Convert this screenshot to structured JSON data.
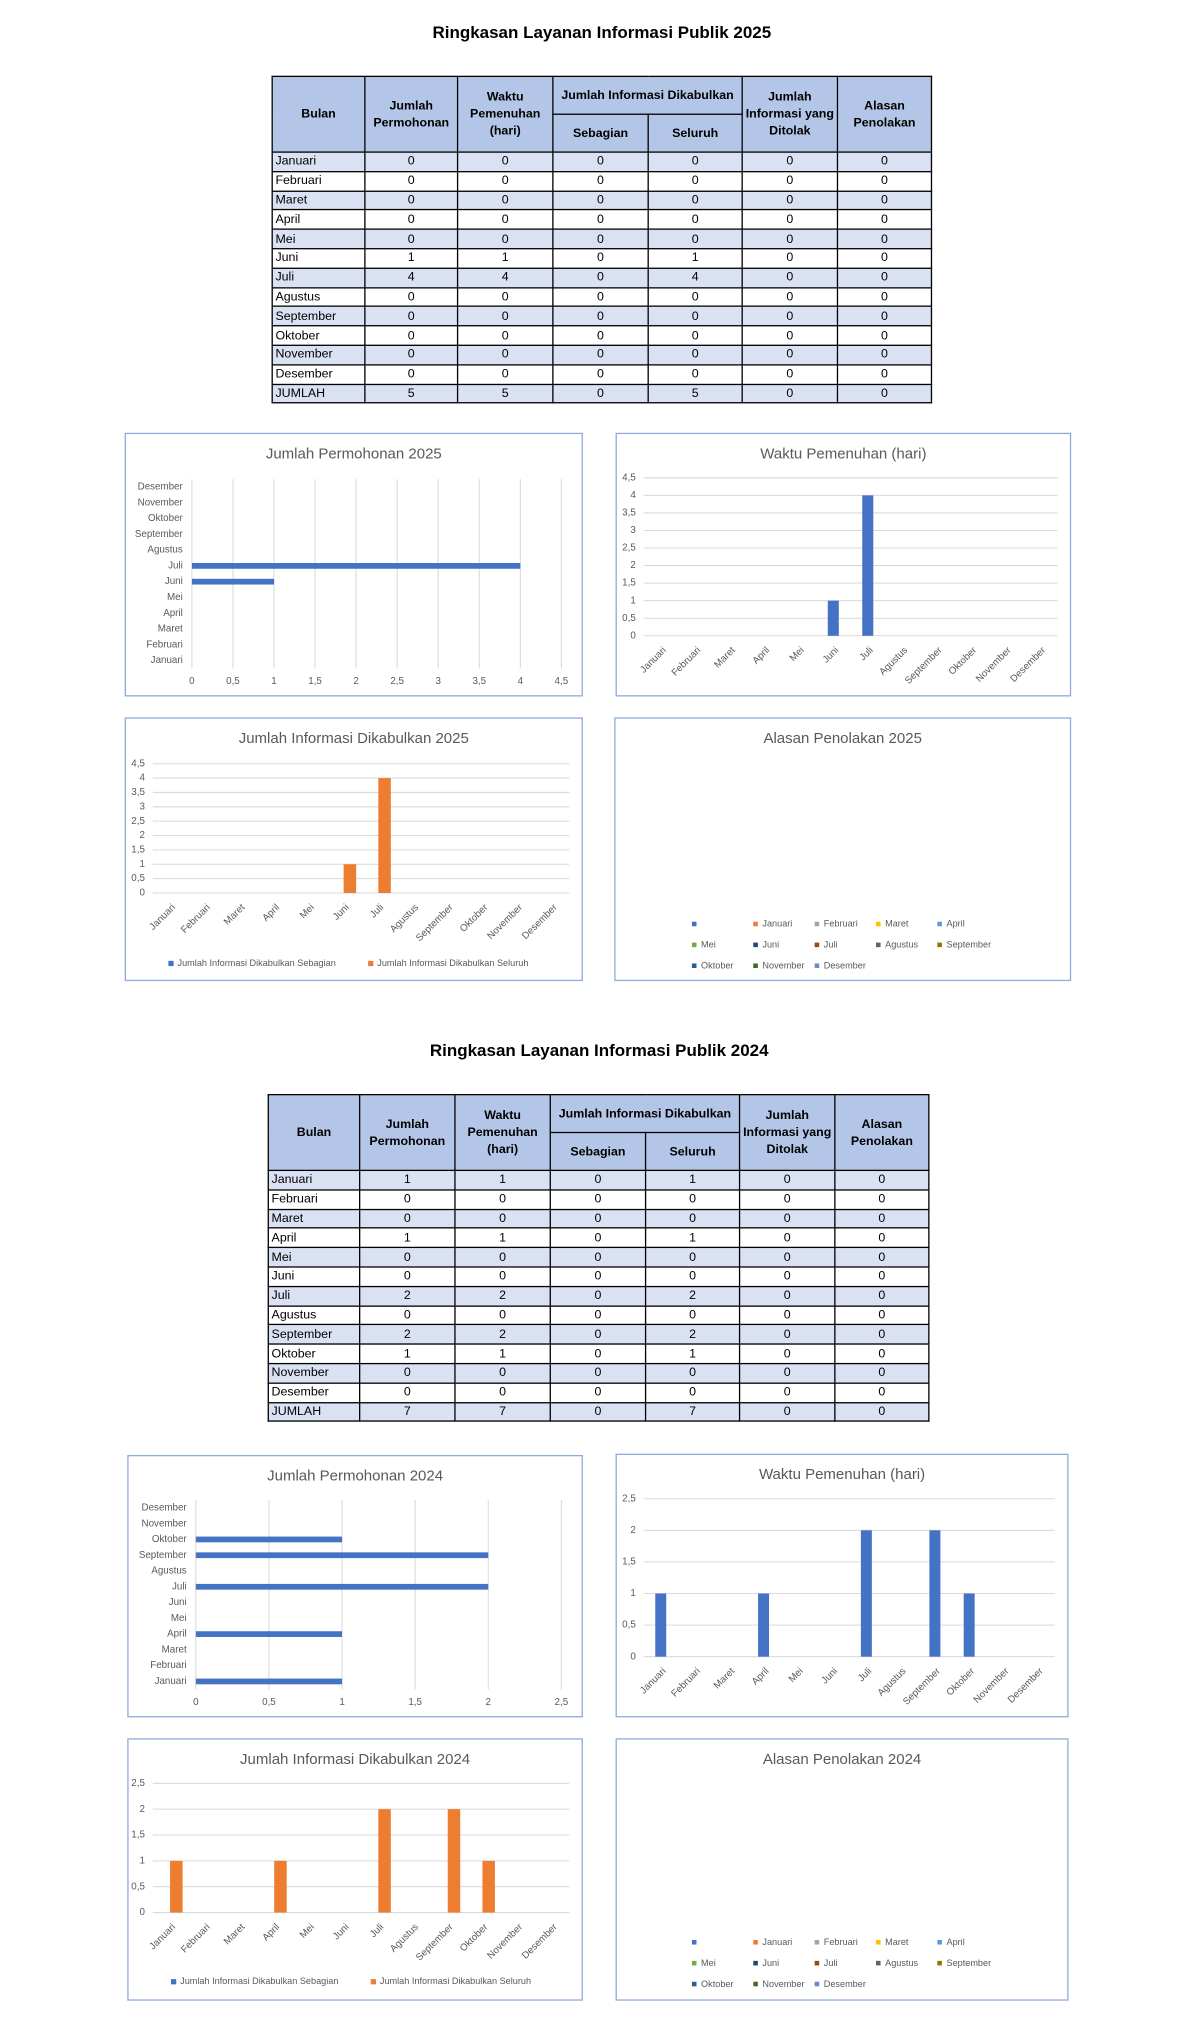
{
  "sections": [
    {
      "title": "Ringkasan Layanan Informasi Publik 2025",
      "table": {
        "columns": [
          "Bulan",
          "Jumlah Permohonan",
          "Waktu Pemenuhan (hari)",
          "Sebagian",
          "Seluruh",
          "Jumlah Informasi yang Ditolak",
          "Alasan Penolakan"
        ],
        "group": "Jumlah Informasi Dikabulkan",
        "rows": [
          [
            "Januari",
            0,
            0,
            0,
            0,
            0,
            0
          ],
          [
            "Februari",
            0,
            0,
            0,
            0,
            0,
            0
          ],
          [
            "Maret",
            0,
            0,
            0,
            0,
            0,
            0
          ],
          [
            "April",
            0,
            0,
            0,
            0,
            0,
            0
          ],
          [
            "Mei",
            0,
            0,
            0,
            0,
            0,
            0
          ],
          [
            "Juni",
            1,
            1,
            0,
            1,
            0,
            0
          ],
          [
            "Juli",
            4,
            4,
            0,
            4,
            0,
            0
          ],
          [
            "Agustus",
            0,
            0,
            0,
            0,
            0,
            0
          ],
          [
            "September",
            0,
            0,
            0,
            0,
            0,
            0
          ],
          [
            "Oktober",
            0,
            0,
            0,
            0,
            0,
            0
          ],
          [
            "November",
            0,
            0,
            0,
            0,
            0,
            0
          ],
          [
            "Desember",
            0,
            0,
            0,
            0,
            0,
            0
          ],
          [
            "JUMLAH",
            5,
            5,
            0,
            5,
            0,
            0
          ]
        ]
      }
    },
    {
      "title": "Ringkasan Layanan Informasi Publik 2024",
      "table": {
        "columns": [
          "Bulan",
          "Jumlah Permohonan",
          "Waktu Pemenuhan (hari)",
          "Sebagian",
          "Seluruh",
          "Jumlah Informasi yang Ditolak",
          "Alasan Penolakan"
        ],
        "group": "Jumlah Informasi Dikabulkan",
        "rows": [
          [
            "Januari",
            1,
            1,
            0,
            1,
            0,
            0
          ],
          [
            "Februari",
            0,
            0,
            0,
            0,
            0,
            0
          ],
          [
            "Maret",
            0,
            0,
            0,
            0,
            0,
            0
          ],
          [
            "April",
            1,
            1,
            0,
            1,
            0,
            0
          ],
          [
            "Mei",
            0,
            0,
            0,
            0,
            0,
            0
          ],
          [
            "Juni",
            0,
            0,
            0,
            0,
            0,
            0
          ],
          [
            "Juli",
            2,
            2,
            0,
            2,
            0,
            0
          ],
          [
            "Agustus",
            0,
            0,
            0,
            0,
            0,
            0
          ],
          [
            "September",
            2,
            2,
            0,
            2,
            0,
            0
          ],
          [
            "Oktober",
            1,
            1,
            0,
            1,
            0,
            0
          ],
          [
            "November",
            0,
            0,
            0,
            0,
            0,
            0
          ],
          [
            "Desember",
            0,
            0,
            0,
            0,
            0,
            0
          ],
          [
            "JUMLAH",
            7,
            7,
            0,
            7,
            0,
            0
          ]
        ]
      }
    }
  ],
  "chart_data": [
    {
      "type": "bar",
      "orientation": "horizontal",
      "title": "Jumlah Permohonan 2025",
      "categories": [
        "Januari",
        "Februari",
        "Maret",
        "April",
        "Mei",
        "Juni",
        "Juli",
        "Agustus",
        "September",
        "Oktober",
        "November",
        "Desember"
      ],
      "values": [
        0,
        0,
        0,
        0,
        0,
        1,
        4,
        0,
        0,
        0,
        0,
        0
      ],
      "color": "#4472c4",
      "xlim": [
        0,
        4.5
      ],
      "xticks": [
        0,
        {
          "value": 0.5,
          "label": "0,5"
        },
        1,
        {
          "value": 1.5,
          "label": "1,5"
        },
        2,
        {
          "value": 2.5,
          "label": "2,5"
        },
        3,
        {
          "value": 3.5,
          "label": "3,5"
        },
        4,
        {
          "value": 4.5,
          "label": "4,5"
        }
      ],
      "grid": true
    },
    {
      "type": "bar",
      "title": "Waktu Pemenuhan (hari)",
      "categories": [
        "Januari",
        "Februari",
        "Maret",
        "April",
        "Mei",
        "Juni",
        "Juli",
        "Agustus",
        "September",
        "Oktober",
        "November",
        "Desember"
      ],
      "values": [
        0,
        0,
        0,
        0,
        0,
        1,
        4,
        0,
        0,
        0,
        0,
        0
      ],
      "color": "#4472c4",
      "ylim": [
        0,
        4.5
      ],
      "yticks": [
        0,
        {
          "value": 0.5,
          "label": "0,5"
        },
        1,
        {
          "value": 1.5,
          "label": "1,5"
        },
        2,
        {
          "value": 2.5,
          "label": "2,5"
        },
        3,
        {
          "value": 3.5,
          "label": "3,5"
        },
        4,
        {
          "value": 4.5,
          "label": "4,5"
        }
      ],
      "grid": true
    },
    {
      "type": "bar",
      "title": "Jumlah Informasi Dikabulkan 2025",
      "categories": [
        "Januari",
        "Februari",
        "Maret",
        "April",
        "Mei",
        "Juni",
        "Juli",
        "Agustus",
        "September",
        "Oktober",
        "November",
        "Desember"
      ],
      "series": [
        {
          "name": "Jumlah Informasi Dikabulkan Sebagian",
          "color": "#4472c4",
          "values": [
            0,
            0,
            0,
            0,
            0,
            0,
            0,
            0,
            0,
            0,
            0,
            0
          ]
        },
        {
          "name": "Jumlah Informasi Dikabulkan Seluruh",
          "color": "#ed7d31",
          "values": [
            0,
            0,
            0,
            0,
            0,
            1,
            4,
            0,
            0,
            0,
            0,
            0
          ]
        }
      ],
      "ylim": [
        0,
        4.5
      ],
      "yticks": [
        0,
        {
          "value": 0.5,
          "label": "0,5"
        },
        1,
        {
          "value": 1.5,
          "label": "1,5"
        },
        2,
        {
          "value": 2.5,
          "label": "2,5"
        },
        3,
        {
          "value": 3.5,
          "label": "3,5"
        },
        4,
        {
          "value": 4.5,
          "label": "4,5"
        }
      ],
      "grid": true,
      "legend": "bottom"
    },
    {
      "type": "pie",
      "title": "Alasan Penolakan 2025",
      "categories": [
        null,
        "Januari",
        "Februari",
        "Maret",
        "April",
        "Mei",
        "Juni",
        "Juli",
        "Agustus",
        "September",
        "Oktober",
        "November",
        "Desember"
      ],
      "values": [
        0,
        0,
        0,
        0,
        0,
        0,
        0,
        0,
        0,
        0,
        0,
        0,
        0
      ],
      "colors": [
        "#4472c4",
        "#ed7d31",
        "#a5a5a5",
        "#ffc000",
        "#5b9bd5",
        "#70ad47",
        "#264478",
        "#9e480e",
        "#636363",
        "#997300",
        "#255e91",
        "#43682b",
        "#698ed0"
      ],
      "legend": "bottom"
    },
    {
      "type": "bar",
      "orientation": "horizontal",
      "title": "Jumlah Permohonan 2024",
      "categories": [
        "Januari",
        "Februari",
        "Maret",
        "April",
        "Mei",
        "Juni",
        "Juli",
        "Agustus",
        "September",
        "Oktober",
        "November",
        "Desember"
      ],
      "values": [
        1,
        0,
        0,
        1,
        0,
        0,
        2,
        0,
        2,
        1,
        0,
        0
      ],
      "color": "#4472c4",
      "xlim": [
        0,
        2.5
      ],
      "xticks": [
        0,
        {
          "value": 0.5,
          "label": "0,5"
        },
        1,
        {
          "value": 1.5,
          "label": "1,5"
        },
        2,
        {
          "value": 2.5,
          "label": "2,5"
        }
      ],
      "grid": true
    },
    {
      "type": "bar",
      "title": "Waktu Pemenuhan (hari)",
      "categories": [
        "Januari",
        "Februari",
        "Maret",
        "April",
        "Mei",
        "Juni",
        "Juli",
        "Agustus",
        "September",
        "Oktober",
        "November",
        "Desember"
      ],
      "values": [
        1,
        0,
        0,
        1,
        0,
        0,
        2,
        0,
        2,
        1,
        0,
        0
      ],
      "color": "#4472c4",
      "ylim": [
        0,
        2.5
      ],
      "yticks": [
        0,
        {
          "value": 0.5,
          "label": "0,5"
        },
        1,
        {
          "value": 1.5,
          "label": "1,5"
        },
        2,
        {
          "value": 2.5,
          "label": "2,5"
        }
      ],
      "grid": true
    },
    {
      "type": "bar",
      "title": "Jumlah Informasi Dikabulkan 2024",
      "categories": [
        "Januari",
        "Februari",
        "Maret",
        "April",
        "Mei",
        "Juni",
        "Juli",
        "Agustus",
        "September",
        "Oktober",
        "November",
        "Desember"
      ],
      "series": [
        {
          "name": "Jumlah Informasi Dikabulkan Sebagian",
          "color": "#4472c4",
          "values": [
            0,
            0,
            0,
            0,
            0,
            0,
            0,
            0,
            0,
            0,
            0,
            0
          ]
        },
        {
          "name": "Jumlah Informasi Dikabulkan Seluruh",
          "color": "#ed7d31",
          "values": [
            1,
            0,
            0,
            1,
            0,
            0,
            2,
            0,
            2,
            1,
            0,
            0
          ]
        }
      ],
      "ylim": [
        0,
        2.5
      ],
      "yticks": [
        0,
        {
          "value": 0.5,
          "label": "0,5"
        },
        1,
        {
          "value": 1.5,
          "label": "1,5"
        },
        2,
        {
          "value": 2.5,
          "label": "2,5"
        }
      ],
      "grid": true,
      "legend": "bottom"
    },
    {
      "type": "pie",
      "title": "Alasan Penolakan 2024",
      "categories": [
        null,
        "Januari",
        "Februari",
        "Maret",
        "April",
        "Mei",
        "Juni",
        "Juli",
        "Agustus",
        "September",
        "Oktober",
        "November",
        "Desember"
      ],
      "values": [
        0,
        0,
        0,
        0,
        0,
        0,
        0,
        0,
        0,
        0,
        0,
        0,
        0
      ],
      "colors": [
        "#4472c4",
        "#ed7d31",
        "#a5a5a5",
        "#ffc000",
        "#5b9bd5",
        "#70ad47",
        "#264478",
        "#9e480e",
        "#636363",
        "#997300",
        "#255e91",
        "#43682b",
        "#698ed0"
      ],
      "legend": "bottom"
    }
  ]
}
